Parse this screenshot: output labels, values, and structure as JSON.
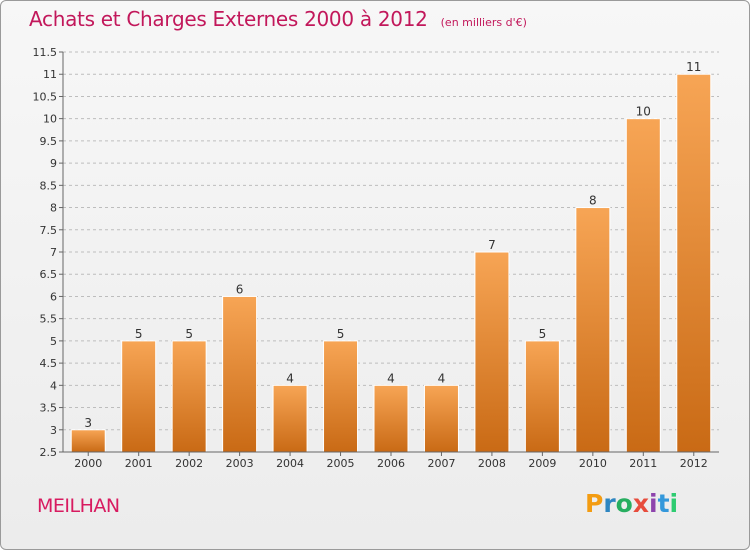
{
  "header": {
    "title": "Achats et Charges Externes 2000 à 2012",
    "subtitle": "(en milliers d'€)"
  },
  "footer": {
    "commune": "MEILHAN",
    "logo_text": "Proxiti"
  },
  "colors": {
    "title": "#c2185b",
    "bar_light": "#f7a555",
    "bar_dark": "#c96a15",
    "grid": "#bdbdbd"
  },
  "chart_data": {
    "type": "bar",
    "categories": [
      "2000",
      "2001",
      "2002",
      "2003",
      "2004",
      "2005",
      "2006",
      "2007",
      "2008",
      "2009",
      "2010",
      "2011",
      "2012"
    ],
    "values": [
      3,
      5,
      5,
      6,
      4,
      5,
      4,
      4,
      7,
      5,
      8,
      10,
      11
    ],
    "data_labels": [
      "3",
      "5",
      "5",
      "6",
      "4",
      "5",
      "4",
      "4",
      "7",
      "5",
      "8",
      "10",
      "11"
    ],
    "ylim": [
      2.5,
      11.5
    ],
    "yticks": [
      "2.5",
      "3",
      "3.5",
      "4",
      "4.5",
      "5",
      "5.5",
      "6",
      "6.5",
      "7",
      "7.5",
      "8",
      "8.5",
      "9",
      "9.5",
      "10",
      "10.5",
      "11",
      "11.5"
    ],
    "grid": "horizontal-dashed",
    "legend": "none"
  }
}
